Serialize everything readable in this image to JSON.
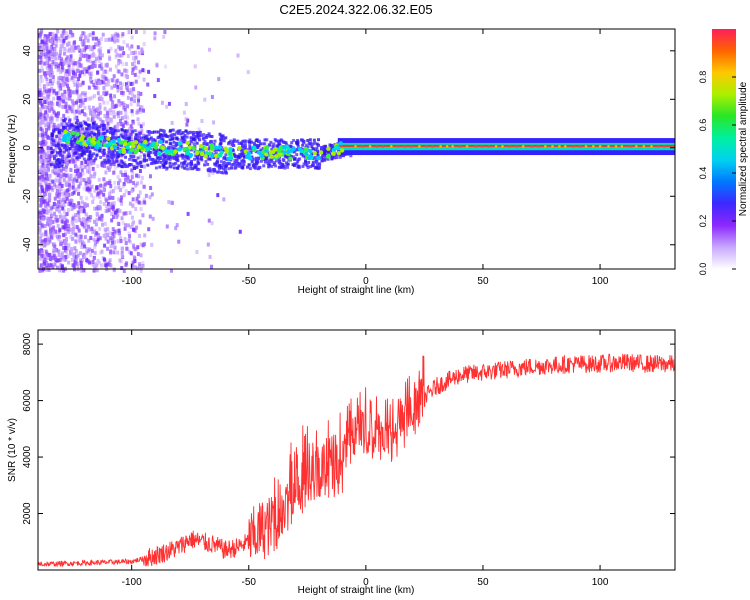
{
  "title": "C2E5.2024.322.06.32.E05",
  "chart_data": [
    {
      "type": "heatmap",
      "xlabel": "Height of straight line (km)",
      "ylabel": "Frequency (Hz)",
      "xlim": [
        -140,
        132
      ],
      "ylim": [
        -50,
        49
      ],
      "xticks": [
        -100,
        -50,
        0,
        50,
        100
      ],
      "yticks": [
        -40,
        -20,
        0,
        20,
        40
      ],
      "colorbar": {
        "label": "Normalized spectral amplitude",
        "range": [
          0,
          1
        ],
        "ticks": [
          0.0,
          0.2,
          0.4,
          0.6,
          0.8
        ],
        "colors": [
          "#ffffff",
          "#c8a8ff",
          "#8c28ff",
          "#3c28ff",
          "#0078ff",
          "#00d2f0",
          "#00f0a0",
          "#28e628",
          "#aaf000",
          "#ffc800",
          "#ff6400",
          "#ff1e5a"
        ]
      },
      "signal_band": {
        "center_frequency_hz": 0.5,
        "description_points": [
          {
            "x": -130,
            "y": 5
          },
          {
            "x": -100,
            "y": 0
          },
          {
            "x": -80,
            "y": 0
          },
          {
            "x": -60,
            "y": -2
          },
          {
            "x": -40,
            "y": -2
          },
          {
            "x": -20,
            "y": -2
          },
          {
            "x": -10,
            "y": 0
          },
          {
            "x": 0,
            "y": 0.5
          },
          {
            "x": 50,
            "y": 0.5
          },
          {
            "x": 100,
            "y": 0.5
          },
          {
            "x": 132,
            "y": 0.5
          }
        ]
      }
    },
    {
      "type": "line",
      "xlabel": "Height of straight line (km)",
      "ylabel": "SNR (10 * v/v)",
      "xlim": [
        -140,
        132
      ],
      "ylim": [
        0,
        8500
      ],
      "xticks": [
        -100,
        -50,
        0,
        50,
        100
      ],
      "yticks": [
        2000,
        4000,
        6000,
        8000
      ],
      "series": [
        {
          "color": "#ff3030",
          "x": [
            -140,
            -120,
            -100,
            -90,
            -80,
            -75,
            -70,
            -65,
            -60,
            -55,
            -50,
            -45,
            -40,
            -35,
            -30,
            -25,
            -20,
            -15,
            -12,
            -10,
            -8,
            -5,
            0,
            5,
            10,
            15,
            20,
            25,
            30,
            40,
            50,
            60,
            70,
            80,
            90,
            100,
            110,
            120,
            132
          ],
          "y": [
            200,
            250,
            300,
            500,
            800,
            1100,
            1000,
            900,
            700,
            800,
            1000,
            1400,
            1600,
            2100,
            2600,
            3300,
            3500,
            3600,
            3400,
            3700,
            4200,
            4600,
            4900,
            4700,
            4600,
            5000,
            5500,
            6100,
            6500,
            6900,
            7000,
            7100,
            7200,
            7250,
            7300,
            7300,
            7350,
            7300,
            7300
          ]
        }
      ]
    }
  ]
}
